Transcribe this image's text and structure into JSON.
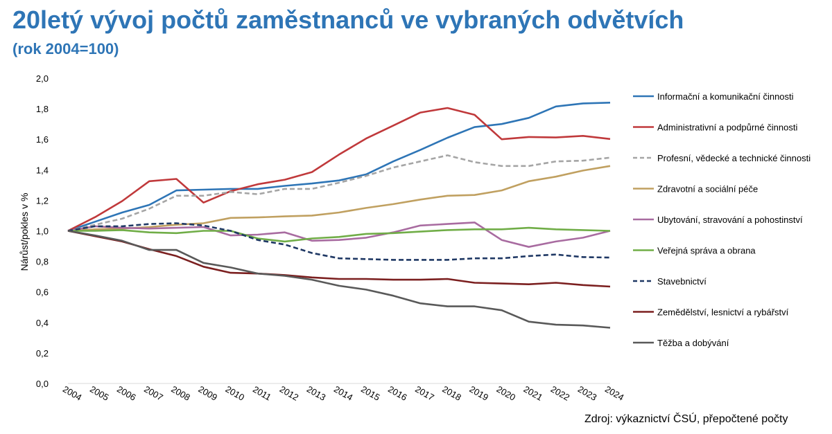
{
  "header": {
    "title": "20letý vývoj počtů zaměstnanců ve vybraných odvětvích",
    "subtitle": "(rok 2004=100)"
  },
  "footer": {
    "source": "Zdroj: výkaznictví ČSÚ, přepočtené počty"
  },
  "chart_data": {
    "type": "line",
    "ylabel": "Nárůst/pokles v %",
    "xlabel": "",
    "ylim": [
      0,
      2.0
    ],
    "yticks": [
      "0,0",
      "0,2",
      "0,4",
      "0,6",
      "0,8",
      "1,0",
      "1,2",
      "1,4",
      "1,6",
      "1,8",
      "2,0"
    ],
    "x": [
      "2004",
      "2005",
      "2006",
      "2007",
      "2008",
      "2009",
      "2010",
      "2011",
      "2012",
      "2013",
      "2014",
      "2015",
      "2016",
      "2017",
      "2018",
      "2019",
      "2020",
      "2021",
      "2022",
      "2023",
      "2024"
    ],
    "legend_position": "right",
    "grid": false,
    "series": [
      {
        "name": "Informační a komunikační činnosti",
        "color": "#2e75b6",
        "dash": false,
        "values": [
          1.0,
          1.06,
          1.12,
          1.17,
          1.265,
          1.27,
          1.275,
          1.275,
          1.295,
          1.31,
          1.33,
          1.37,
          1.455,
          1.53,
          1.61,
          1.68,
          1.7,
          1.74,
          1.815,
          1.835,
          1.84
        ]
      },
      {
        "name": "Administrativní a podpůrné činnosti",
        "color": "#c0393b",
        "dash": false,
        "values": [
          1.0,
          1.09,
          1.195,
          1.325,
          1.34,
          1.185,
          1.26,
          1.305,
          1.335,
          1.385,
          1.5,
          1.605,
          1.69,
          1.775,
          1.805,
          1.76,
          1.6,
          1.615,
          1.612,
          1.622,
          1.602
        ]
      },
      {
        "name": "Profesní, vědecké a technické činnosti",
        "color": "#a5a5a5",
        "dash": true,
        "values": [
          1.0,
          1.04,
          1.08,
          1.145,
          1.23,
          1.23,
          1.255,
          1.24,
          1.275,
          1.275,
          1.315,
          1.36,
          1.415,
          1.455,
          1.495,
          1.45,
          1.425,
          1.425,
          1.455,
          1.46,
          1.48
        ]
      },
      {
        "name": "Zdravotní a sociální péče",
        "color": "#c0a060",
        "dash": false,
        "values": [
          1.0,
          1.01,
          1.015,
          1.025,
          1.04,
          1.05,
          1.085,
          1.088,
          1.095,
          1.1,
          1.12,
          1.15,
          1.175,
          1.205,
          1.23,
          1.235,
          1.265,
          1.325,
          1.355,
          1.395,
          1.425
        ]
      },
      {
        "name": "Ubytování, stravování a pohostinství",
        "color": "#a86ba0",
        "dash": false,
        "values": [
          1.0,
          1.03,
          1.02,
          1.015,
          1.02,
          1.025,
          0.97,
          0.975,
          0.99,
          0.935,
          0.94,
          0.955,
          0.99,
          1.035,
          1.045,
          1.055,
          0.94,
          0.895,
          0.93,
          0.955,
          1.0
        ]
      },
      {
        "name": "Veřejná správa a obrana",
        "color": "#70ad47",
        "dash": false,
        "values": [
          1.0,
          1.0,
          1.005,
          0.99,
          0.985,
          1.0,
          1.0,
          0.95,
          0.93,
          0.95,
          0.96,
          0.98,
          0.985,
          0.995,
          1.005,
          1.01,
          1.01,
          1.02,
          1.01,
          1.005,
          1.0
        ]
      },
      {
        "name": "Stavebnictví",
        "color": "#1f3864",
        "dash": true,
        "values": [
          1.0,
          1.03,
          1.03,
          1.045,
          1.05,
          1.035,
          1.0,
          0.94,
          0.91,
          0.855,
          0.82,
          0.815,
          0.81,
          0.81,
          0.81,
          0.82,
          0.82,
          0.835,
          0.845,
          0.828,
          0.825
        ]
      },
      {
        "name": "Zemědělství, lesnictví a rybářství",
        "color": "#7b1f1f",
        "dash": false,
        "values": [
          1.0,
          0.965,
          0.93,
          0.88,
          0.835,
          0.765,
          0.725,
          0.72,
          0.71,
          0.695,
          0.685,
          0.685,
          0.68,
          0.68,
          0.685,
          0.66,
          0.655,
          0.65,
          0.66,
          0.645,
          0.635
        ]
      },
      {
        "name": "Těžba a dobývání",
        "color": "#595959",
        "dash": false,
        "values": [
          1.0,
          0.97,
          0.935,
          0.875,
          0.875,
          0.79,
          0.76,
          0.72,
          0.705,
          0.68,
          0.64,
          0.615,
          0.575,
          0.525,
          0.505,
          0.505,
          0.48,
          0.405,
          0.385,
          0.38,
          0.365
        ]
      }
    ]
  }
}
